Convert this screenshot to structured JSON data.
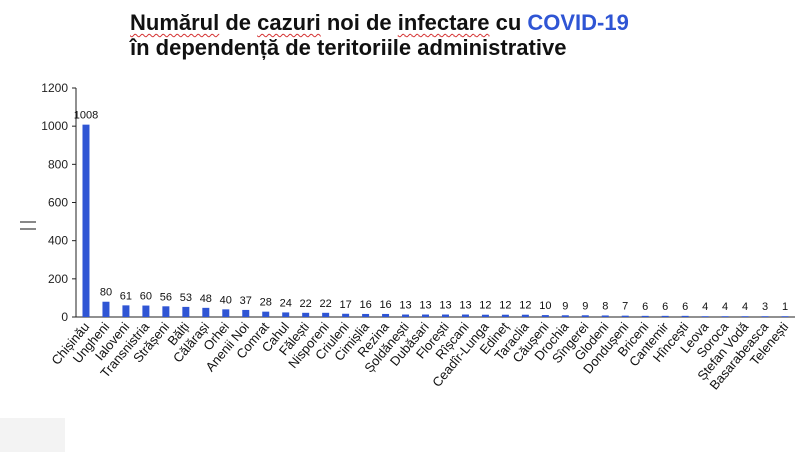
{
  "title": {
    "line1_parts": [
      "Numărul",
      " de ",
      "cazuri",
      " noi de ",
      "infectare",
      " cu "
    ],
    "line1_accent": "COVID-19",
    "line2": "în dependență de teritoriile administrative"
  },
  "colors": {
    "bar": "#2f55d4",
    "title_accent": "#2f55d4",
    "axis": "#222222"
  },
  "chart_data": {
    "type": "bar",
    "title": "Numărul de cazuri noi de infectare cu COVID-19 în dependență de teritoriile administrative",
    "xlabel": "",
    "ylabel": "",
    "ylim": [
      0,
      1200
    ],
    "yticks": [
      0,
      200,
      400,
      600,
      800,
      1000,
      1200
    ],
    "grid": false,
    "categories": [
      "Chișinău",
      "Ungheni",
      "Ialoveni",
      "Transnistria",
      "Strășeni",
      "Bălți",
      "Călărași",
      "Orhei",
      "Anenii Noi",
      "Comrat",
      "Cahul",
      "Fălești",
      "Nisporeni",
      "Criuleni",
      "Cimișlia",
      "Rezina",
      "Șoldănești",
      "Dubăsari",
      "Florești",
      "Rîșcani",
      "Ceadîr-Lunga",
      "Edineț",
      "Taraclia",
      "Căușeni",
      "Drochia",
      "Sîngerei",
      "Glodeni",
      "Dondușeni",
      "Briceni",
      "Cantemir",
      "Hîncești",
      "Leova",
      "Soroca",
      "Ștefan Vodă",
      "Basarabeasca",
      "Telenești"
    ],
    "values": [
      1008,
      80,
      61,
      60,
      56,
      53,
      48,
      40,
      37,
      28,
      24,
      22,
      22,
      17,
      16,
      16,
      13,
      13,
      13,
      13,
      12,
      12,
      12,
      10,
      9,
      9,
      8,
      7,
      6,
      6,
      6,
      4,
      4,
      4,
      3,
      1
    ]
  }
}
